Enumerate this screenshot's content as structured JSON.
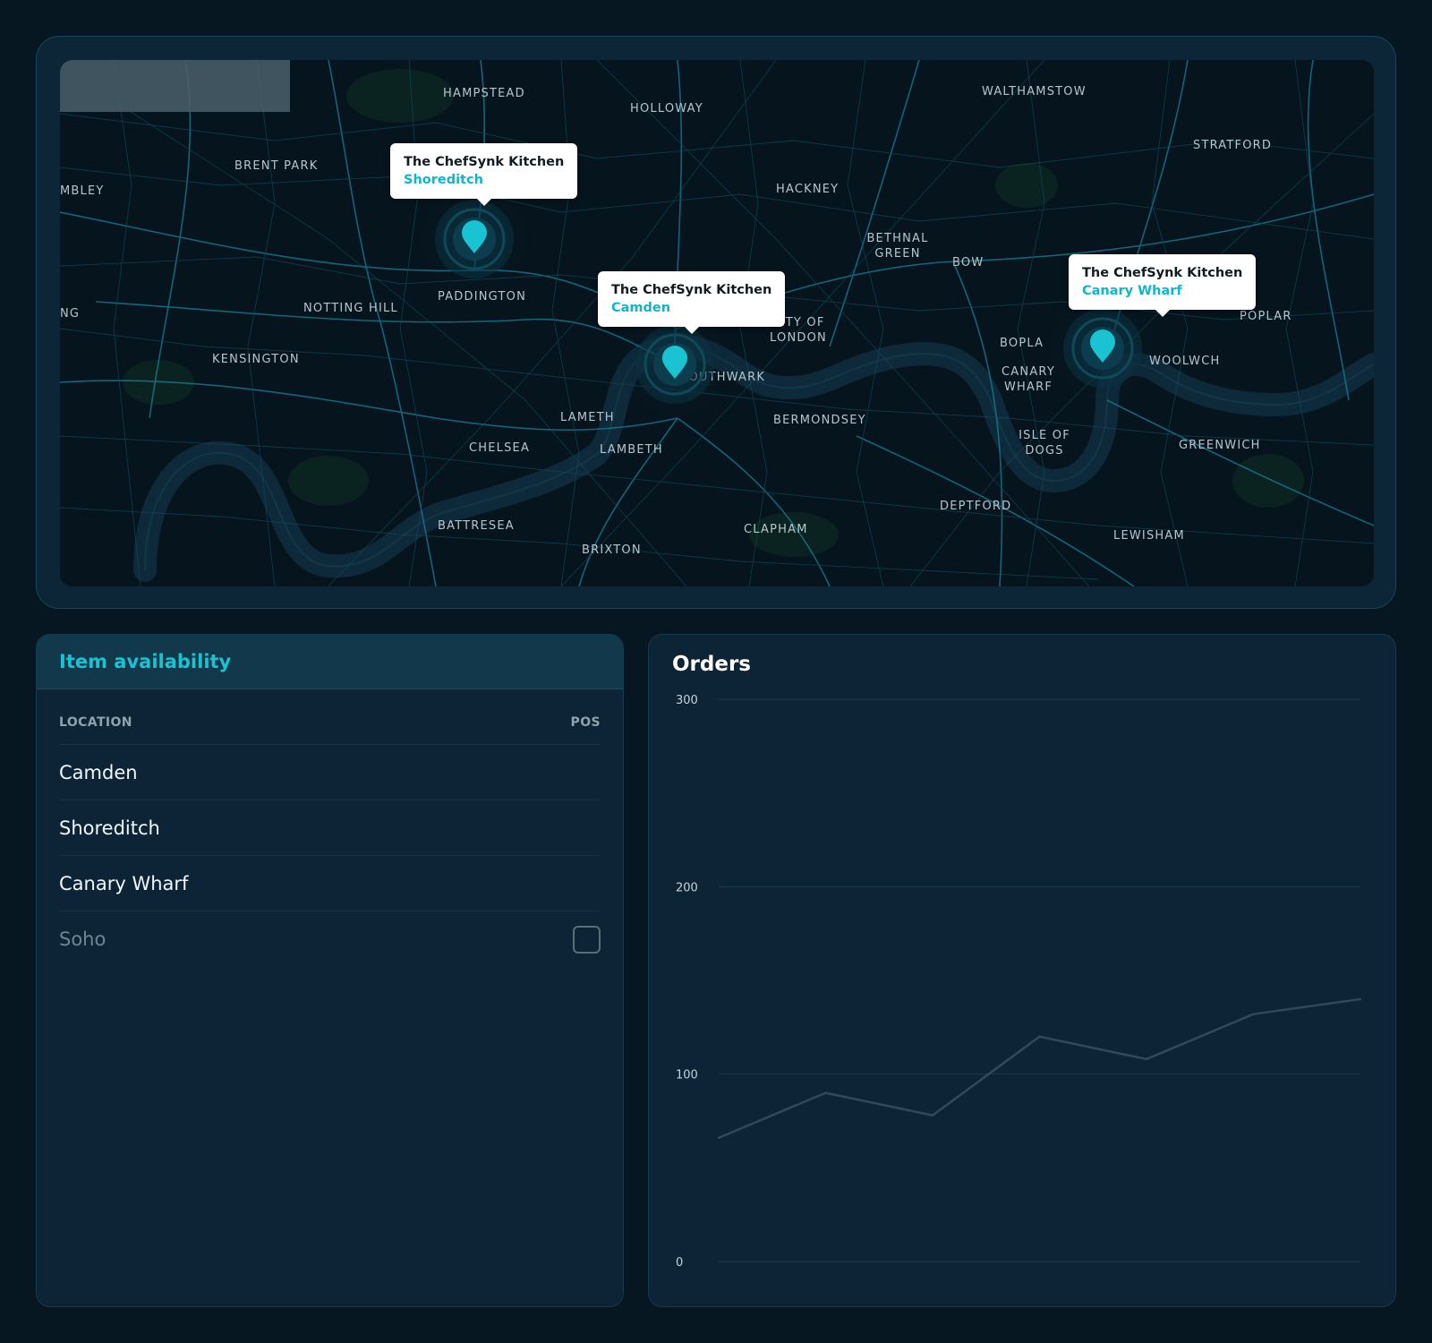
{
  "map": {
    "places": [
      {
        "id": "hampstead",
        "label": "HAMPSTEAD"
      },
      {
        "id": "holloway",
        "label": "HOLLOWAY"
      },
      {
        "id": "walthamstow",
        "label": "WALTHAMSTOW"
      },
      {
        "id": "stratford",
        "label": "STRATFORD"
      },
      {
        "id": "brent-park",
        "label": "BRENT PARK"
      },
      {
        "id": "wembley",
        "label": "MBLEY"
      },
      {
        "id": "hackney",
        "label": "HACKNEY"
      },
      {
        "id": "bethnal-green",
        "label": "BETHNAL GREEN"
      },
      {
        "id": "bow",
        "label": "BOW"
      },
      {
        "id": "paddington",
        "label": "PADDINGTON"
      },
      {
        "id": "notting-hill",
        "label": "NOTTING HILL"
      },
      {
        "id": "ealing",
        "label": "NG"
      },
      {
        "id": "poplar",
        "label": "POPLAR"
      },
      {
        "id": "city-of-london",
        "label": "CITY OF LONDON"
      },
      {
        "id": "kensington",
        "label": "KENSINGTON"
      },
      {
        "id": "southwark",
        "label": "SOUTHWARK"
      },
      {
        "id": "bopl",
        "label": "BOPLA"
      },
      {
        "id": "woolwich",
        "label": "WOOLWCH"
      },
      {
        "id": "canary-wharf",
        "label": "CANARY WHARF"
      },
      {
        "id": "lambeth-1",
        "label": "LAMETH"
      },
      {
        "id": "bermondsey",
        "label": "BERMONDSEY"
      },
      {
        "id": "chelsea",
        "label": "CHELSEA"
      },
      {
        "id": "lambeth-2",
        "label": "LAMBETH"
      },
      {
        "id": "isle-of-dogs",
        "label": "ISLE OF DOGS"
      },
      {
        "id": "greenwich",
        "label": "GREENWICH"
      },
      {
        "id": "deptford",
        "label": "DEPTFORD"
      },
      {
        "id": "battersea",
        "label": "BATTRESEA"
      },
      {
        "id": "clapham",
        "label": "CLAPHAM"
      },
      {
        "id": "lewisham",
        "label": "LEWISHAM"
      },
      {
        "id": "brixton",
        "label": "BRIXTON"
      }
    ],
    "kitchens": [
      {
        "id": "shoreditch",
        "title": "The ChefSynk Kitchen",
        "location": "Shoreditch"
      },
      {
        "id": "camden",
        "title": "The ChefSynk Kitchen",
        "location": "Camden"
      },
      {
        "id": "canary-wharf",
        "title": "The ChefSynk Kitchen",
        "location": "Canary Wharf"
      }
    ],
    "colors": {
      "water": "#0f2b3c",
      "road": "#1d8aa6",
      "pin": "#19c3d2"
    }
  },
  "availability": {
    "title": "Item availability",
    "columns": {
      "location": "LOCATION",
      "pos": "POS"
    },
    "rows": [
      {
        "location": "Camden",
        "enabled": true
      },
      {
        "location": "Shoreditch",
        "enabled": true
      },
      {
        "location": "Canary Wharf",
        "enabled": true
      },
      {
        "location": "Soho",
        "enabled": false,
        "pos_checked": false
      }
    ]
  },
  "orders": {
    "title": "Orders",
    "chart_data": {
      "type": "line",
      "title": "Orders",
      "xlabel": "",
      "ylabel": "",
      "ylim": [
        0,
        300
      ],
      "yticks": [
        0,
        100,
        200,
        300
      ],
      "x": [
        0,
        1,
        2,
        3,
        4,
        5,
        6
      ],
      "series": [
        {
          "values": [
            66,
            90,
            78,
            120,
            108,
            132,
            140
          ]
        }
      ],
      "grid": true,
      "line_color": "#2e4a5c"
    }
  }
}
